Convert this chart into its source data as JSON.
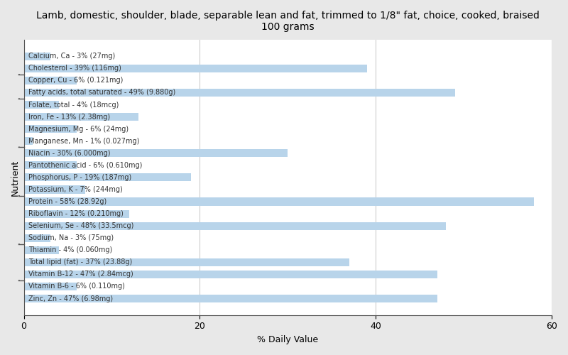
{
  "title": "Lamb, domestic, shoulder, blade, separable lean and fat, trimmed to 1/8\" fat, choice, cooked, braised\n100 grams",
  "xlabel": "% Daily Value",
  "ylabel": "Nutrient",
  "bar_color": "#b8d4ea",
  "background_color": "#e8e8e8",
  "plot_bg_color": "#ffffff",
  "xlim": [
    0,
    60
  ],
  "xticks": [
    0,
    20,
    40,
    60
  ],
  "nutrients": [
    {
      "label": "Calcium, Ca - 3% (27mg)",
      "value": 3
    },
    {
      "label": "Cholesterol - 39% (116mg)",
      "value": 39
    },
    {
      "label": "Copper, Cu - 6% (0.121mg)",
      "value": 6
    },
    {
      "label": "Fatty acids, total saturated - 49% (9.880g)",
      "value": 49
    },
    {
      "label": "Folate, total - 4% (18mcg)",
      "value": 4
    },
    {
      "label": "Iron, Fe - 13% (2.38mg)",
      "value": 13
    },
    {
      "label": "Magnesium, Mg - 6% (24mg)",
      "value": 6
    },
    {
      "label": "Manganese, Mn - 1% (0.027mg)",
      "value": 1
    },
    {
      "label": "Niacin - 30% (6.000mg)",
      "value": 30
    },
    {
      "label": "Pantothenic acid - 6% (0.610mg)",
      "value": 6
    },
    {
      "label": "Phosphorus, P - 19% (187mg)",
      "value": 19
    },
    {
      "label": "Potassium, K - 7% (244mg)",
      "value": 7
    },
    {
      "label": "Protein - 58% (28.92g)",
      "value": 58
    },
    {
      "label": "Riboflavin - 12% (0.210mg)",
      "value": 12
    },
    {
      "label": "Selenium, Se - 48% (33.5mcg)",
      "value": 48
    },
    {
      "label": "Sodium, Na - 3% (75mg)",
      "value": 3
    },
    {
      "label": "Thiamin - 4% (0.060mg)",
      "value": 4
    },
    {
      "label": "Total lipid (fat) - 37% (23.88g)",
      "value": 37
    },
    {
      "label": "Vitamin B-12 - 47% (2.84mcg)",
      "value": 47
    },
    {
      "label": "Vitamin B-6 - 6% (0.110mg)",
      "value": 6
    },
    {
      "label": "Zinc, Zn - 47% (6.98mg)",
      "value": 47
    }
  ],
  "title_fontsize": 10,
  "label_fontsize": 7,
  "axis_label_fontsize": 9
}
